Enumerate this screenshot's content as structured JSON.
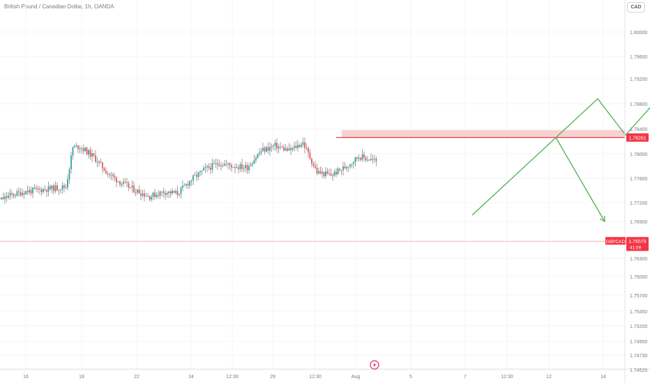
{
  "header": {
    "title": "British Pound / Canadian Dollar, 1h, OANDA",
    "currency": "CAD"
  },
  "colors": {
    "up": "#26a69a",
    "down": "#ef5350",
    "arrows": "#4caf50",
    "zone": "#f8c9c9",
    "price_line": "#f23645",
    "axis_text": "#787b86"
  },
  "icons": {
    "bottom_marker": "lightning-bolt-icon"
  },
  "chart_data": {
    "type": "candlestick",
    "symbol": "GBPCAD",
    "y_axis": {
      "ticks": [
        "1.80000",
        "1.79600",
        "1.79200",
        "1.78800",
        "1.78400",
        "1.78000",
        "1.77600",
        "1.77200",
        "1.76900",
        "1.76300",
        "1.76000",
        "1.75700",
        "1.75450",
        "1.75200",
        "1.74950",
        "1.74730",
        "1.74520"
      ]
    },
    "x_axis": {
      "ticks": [
        "16",
        "18",
        "22",
        "24",
        "12:30",
        "29",
        "12:30",
        "Aug",
        "5",
        "7",
        "12:30",
        "12",
        "14"
      ]
    },
    "current_price": {
      "label": "GBPCAD",
      "value": "1.76579",
      "countdown": "41:59"
    },
    "resistance_level": {
      "value": "1.78261"
    },
    "resistance_zone": [
      1.7826,
      1.7838
    ],
    "projection_arrows": [
      {
        "name": "bullish-path",
        "points": [
          [
            "2023-08-01 00:00",
            1.77
          ],
          [
            "2023-08-04 00:00",
            1.7826
          ],
          [
            "2023-08-05 12:00",
            1.7888
          ],
          [
            "2023-08-06 12:00",
            1.783
          ],
          [
            "2023-08-08 00:00",
            1.7905
          ]
        ]
      },
      {
        "name": "bearish-path",
        "points": [
          [
            "2023-08-04 00:00",
            1.7826
          ],
          [
            "2023-08-05 18:00",
            1.769
          ]
        ]
      }
    ],
    "series": [
      {
        "name": "GBPCAD",
        "ohlc_anchors": [
          [
            "2023-07-14 12:00",
            1.771
          ],
          [
            "2023-07-15 12:00",
            1.7732
          ],
          [
            "2023-07-16 00:00",
            1.7738
          ],
          [
            "2023-07-16 18:00",
            1.7742
          ],
          [
            "2023-07-17 12:00",
            1.7746
          ],
          [
            "2023-07-17 18:00",
            1.781
          ],
          [
            "2023-07-18 00:00",
            1.7812
          ],
          [
            "2023-07-18 12:00",
            1.7795
          ],
          [
            "2023-07-19 00:00",
            1.7768
          ],
          [
            "2023-07-19 12:00",
            1.7752
          ],
          [
            "2023-07-20 00:00",
            1.774
          ],
          [
            "2023-07-20 12:00",
            1.773
          ],
          [
            "2023-07-21 00:00",
            1.7738
          ],
          [
            "2023-07-21 12:00",
            1.7735
          ],
          [
            "2023-07-22 00:00",
            1.7758
          ],
          [
            "2023-07-22 12:00",
            1.7775
          ],
          [
            "2023-07-23 00:00",
            1.7785
          ],
          [
            "2023-07-23 12:00",
            1.778
          ],
          [
            "2023-07-24 00:00",
            1.7778
          ],
          [
            "2023-07-24 12:00",
            1.7805
          ],
          [
            "2023-07-25 00:00",
            1.7813
          ],
          [
            "2023-07-25 12:00",
            1.7805
          ],
          [
            "2023-07-26 00:00",
            1.7818
          ],
          [
            "2023-07-26 12:00",
            1.777
          ],
          [
            "2023-07-27 00:00",
            1.7765
          ],
          [
            "2023-07-27 12:00",
            1.7778
          ],
          [
            "2023-07-28 00:00",
            1.7796
          ],
          [
            "2023-07-28 12:00",
            1.779
          ],
          [
            "2023-07-29 00:00",
            1.7782
          ],
          [
            "2023-07-29 12:00",
            1.776
          ],
          [
            "2023-07-30 00:00",
            1.781
          ],
          [
            "2023-07-30 12:00",
            1.7808
          ],
          [
            "2023-07-31 00:00",
            1.7782
          ],
          [
            "2023-07-31 12:00",
            1.777
          ],
          [
            "2023-08-01 00:00",
            1.7755
          ],
          [
            "2023-08-01 12:00",
            1.7742
          ],
          [
            "2023-08-01 18:00",
            1.7752
          ],
          [
            "2023-08-02 00:00",
            1.7745
          ],
          [
            "2023-08-02 06:00",
            1.768
          ],
          [
            "2023-08-02 10:00",
            1.7655
          ],
          [
            "2023-08-02 14:00",
            1.768
          ],
          [
            "2023-08-02 16:00",
            1.766
          ]
        ]
      }
    ]
  }
}
